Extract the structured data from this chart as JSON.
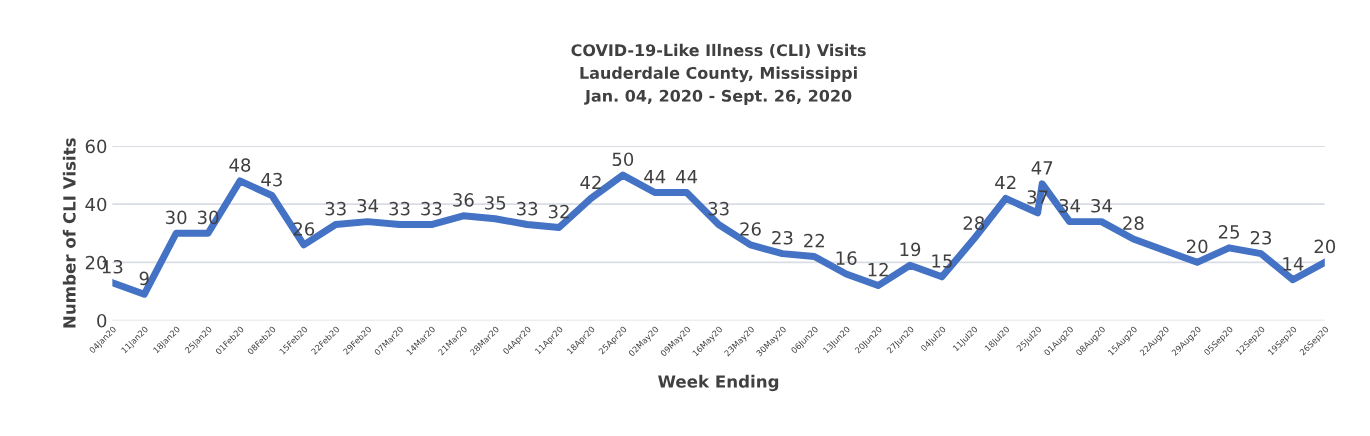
{
  "chart_data": {
    "type": "line",
    "title": "COVID-19-Like Illness (CLI) Visits\nLauderdale County, Mississippi\nJan. 04, 2020 - Sept. 26, 2020",
    "xlabel": "Week Ending",
    "ylabel": "Number of CLI Visits",
    "x": [
      "2020-01-04",
      "2020-01-11",
      "2020-01-18",
      "2020-01-25",
      "2020-02-01",
      "2020-02-08",
      "2020-02-15",
      "2020-02-22",
      "2020-02-29",
      "2020-03-07",
      "2020-03-14",
      "2020-03-21",
      "2020-03-28",
      "2020-04-04",
      "2020-04-11",
      "2020-04-18",
      "2020-04-25",
      "2020-05-02",
      "2020-05-09",
      "2020-05-16",
      "2020-05-23",
      "2020-05-30",
      "2020-06-06",
      "2020-06-13",
      "2020-06-20",
      "2020-06-27",
      "2020-07-04",
      "2020-07-11",
      "2020-07-18",
      "2020-07-25",
      "2020-07-26",
      "2020-08-01",
      "2020-08-08",
      "2020-08-15",
      "2020-08-29",
      "2020-09-05",
      "2020-09-12",
      "2020-09-19",
      "2020-09-26"
    ],
    "series": [
      {
        "color": "#4472c4",
        "values": [
          13,
          9,
          30,
          30,
          48,
          43,
          26,
          33,
          34,
          33,
          33,
          36,
          35,
          33,
          32,
          42,
          50,
          44,
          44,
          33,
          26,
          23,
          22,
          16,
          12,
          19,
          15,
          28,
          42,
          37,
          47,
          34,
          34,
          28,
          20,
          25,
          23,
          14,
          20
        ]
      }
    ],
    "data_labels": true,
    "grid": "y",
    "marker": "none",
    "line_style": "solid",
    "xlim": [
      "2020-01-04",
      "2020-09-26"
    ],
    "xticks": [
      {
        "value": "2020-01-04",
        "label": "04Jan20"
      },
      {
        "value": "2020-01-11",
        "label": "11Jan20"
      },
      {
        "value": "2020-01-18",
        "label": "18Jan20"
      },
      {
        "value": "2020-01-25",
        "label": "25Jan20"
      },
      {
        "value": "2020-02-01",
        "label": "01Feb20"
      },
      {
        "value": "2020-02-08",
        "label": "08Feb20"
      },
      {
        "value": "2020-02-15",
        "label": "15Feb20"
      },
      {
        "value": "2020-02-22",
        "label": "22Feb20"
      },
      {
        "value": "2020-02-29",
        "label": "29Feb20"
      },
      {
        "value": "2020-03-07",
        "label": "07Mar20"
      },
      {
        "value": "2020-03-14",
        "label": "14Mar20"
      },
      {
        "value": "2020-03-21",
        "label": "21Mar20"
      },
      {
        "value": "2020-03-28",
        "label": "28Mar20"
      },
      {
        "value": "2020-04-04",
        "label": "04Apr20"
      },
      {
        "value": "2020-04-11",
        "label": "11Apr20"
      },
      {
        "value": "2020-04-18",
        "label": "18Apr20"
      },
      {
        "value": "2020-04-25",
        "label": "25Apr20"
      },
      {
        "value": "2020-05-02",
        "label": "02May20"
      },
      {
        "value": "2020-05-09",
        "label": "09May20"
      },
      {
        "value": "2020-05-16",
        "label": "16May20"
      },
      {
        "value": "2020-05-23",
        "label": "23May20"
      },
      {
        "value": "2020-05-30",
        "label": "30May20"
      },
      {
        "value": "2020-06-06",
        "label": "06Jun20"
      },
      {
        "value": "2020-06-13",
        "label": "13Jun20"
      },
      {
        "value": "2020-06-20",
        "label": "20Jun20"
      },
      {
        "value": "2020-06-27",
        "label": "27Jun20"
      },
      {
        "value": "2020-07-04",
        "label": "04Jul20"
      },
      {
        "value": "2020-07-11",
        "label": "11Jul20"
      },
      {
        "value": "2020-07-18",
        "label": "18Jul20"
      },
      {
        "value": "2020-07-25",
        "label": "25Jul20"
      },
      {
        "value": "2020-08-01",
        "label": "01Aug20"
      },
      {
        "value": "2020-08-08",
        "label": "08Aug20"
      },
      {
        "value": "2020-08-15",
        "label": "15Aug20"
      },
      {
        "value": "2020-08-22",
        "label": "22Aug20"
      },
      {
        "value": "2020-08-29",
        "label": "29Aug20"
      },
      {
        "value": "2020-09-05",
        "label": "05Sep20"
      },
      {
        "value": "2020-09-12",
        "label": "12Sep20"
      },
      {
        "value": "2020-09-19",
        "label": "19Sep20"
      },
      {
        "value": "2020-09-26",
        "label": "26Sep20"
      }
    ],
    "ylim": [
      0,
      60
    ],
    "yticks": [
      0,
      20,
      40,
      60
    ]
  }
}
